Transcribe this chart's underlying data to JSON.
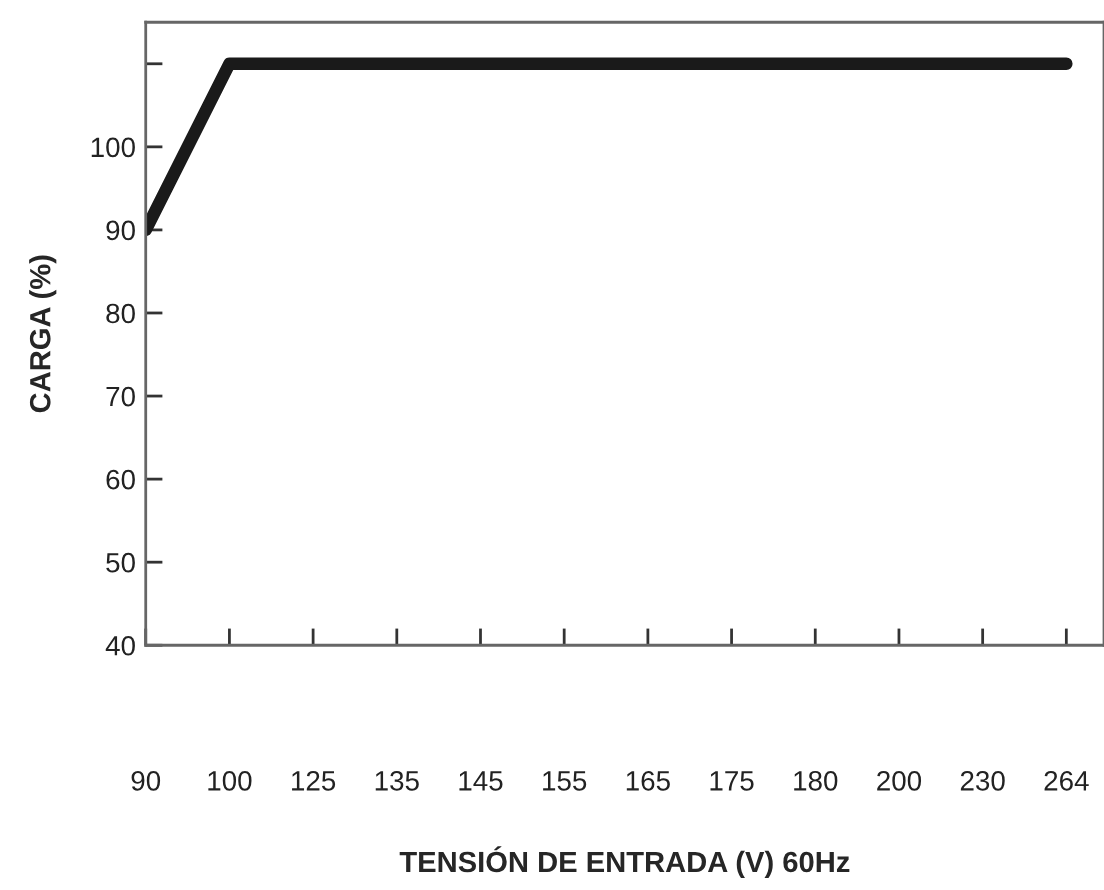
{
  "chart_data": {
    "type": "line",
    "xlabel": "TENSIÓN DE ENTRADA (V) 60Hz",
    "ylabel": "CARGA (%)",
    "categories": [
      "90",
      "100",
      "125",
      "135",
      "145",
      "155",
      "165",
      "175",
      "180",
      "200",
      "230",
      "264"
    ],
    "series": [
      {
        "color": "#1a1a1a",
        "values": [
          90,
          110,
          110,
          110,
          110,
          110,
          110,
          110,
          110,
          110,
          110,
          110
        ]
      }
    ],
    "ylim": [
      40,
      115
    ],
    "yticks": [
      40,
      50,
      60,
      70,
      80,
      90,
      100,
      {
        "value": 110,
        "label": null
      }
    ],
    "grid": false,
    "legend": false,
    "marker": "none",
    "line_style": "solid"
  }
}
